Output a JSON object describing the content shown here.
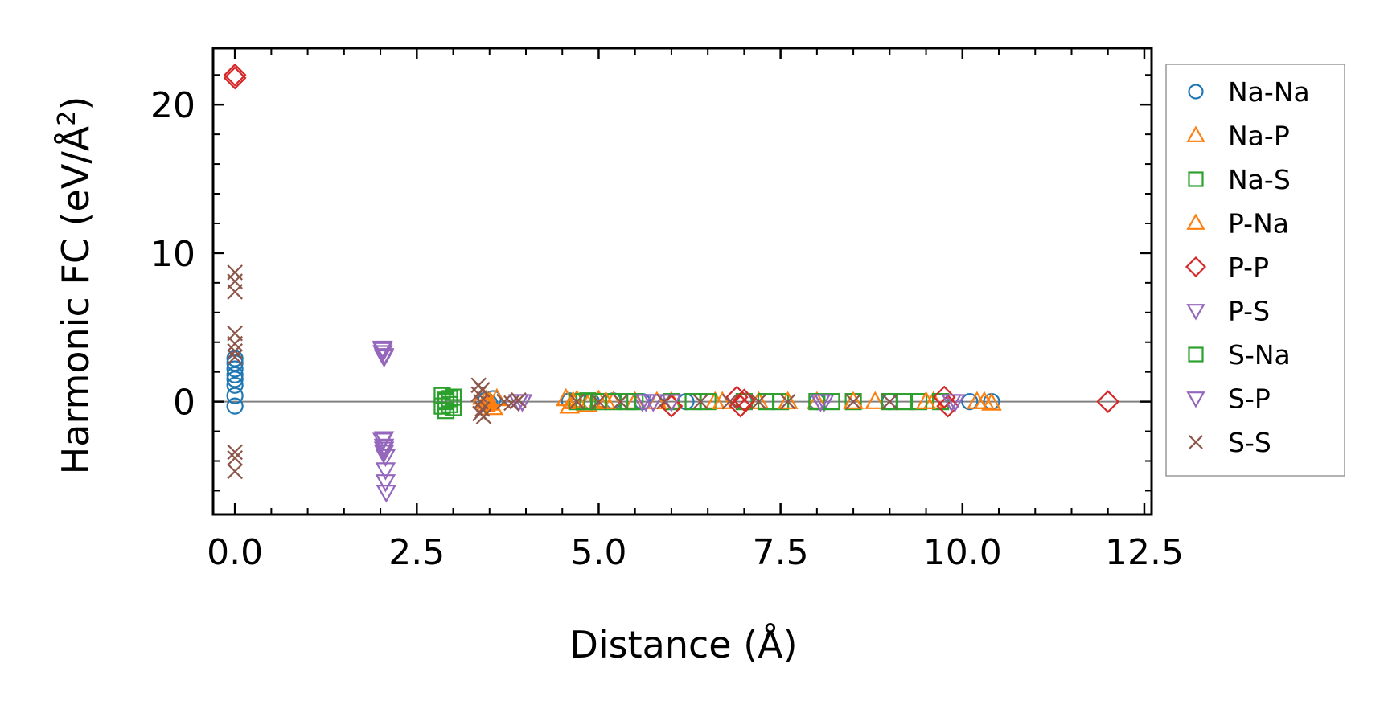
{
  "chart_data": {
    "type": "scatter",
    "title": "",
    "xlabel": "Distance (Å)",
    "ylabel_prefix": "Harmonic FC (eV/Å",
    "ylabel_sup": "2",
    "ylabel_suffix": ")",
    "xlim": [
      -0.3,
      12.6
    ],
    "ylim": [
      -7.6,
      23.8
    ],
    "xticks": [
      0.0,
      2.5,
      5.0,
      7.5,
      10.0,
      12.5
    ],
    "xtick_labels": [
      "0.0",
      "2.5",
      "5.0",
      "7.5",
      "10.0",
      "12.5"
    ],
    "yticks": [
      0,
      10,
      20
    ],
    "ytick_labels": [
      "0",
      "10",
      "20"
    ],
    "zero_line": 0,
    "legend_position": "outside-right",
    "series": [
      {
        "name": "Na-Na",
        "marker": "circle",
        "color": "#1f77b4",
        "points": [
          [
            0.0,
            2.9
          ],
          [
            0.0,
            2.6
          ],
          [
            0.0,
            2.2
          ],
          [
            0.0,
            1.8
          ],
          [
            0.0,
            1.5
          ],
          [
            0.0,
            1.1
          ],
          [
            0.0,
            0.4
          ],
          [
            0.0,
            -0.3
          ],
          [
            3.45,
            0.1
          ],
          [
            3.5,
            -0.1
          ],
          [
            3.55,
            0.2
          ],
          [
            4.6,
            0.05
          ],
          [
            4.9,
            0.0
          ],
          [
            5.2,
            0.05
          ],
          [
            5.6,
            0.0
          ],
          [
            6.2,
            0.0
          ],
          [
            7.0,
            0.02
          ],
          [
            8.0,
            0.0
          ],
          [
            9.0,
            0.0
          ],
          [
            10.1,
            0.0
          ],
          [
            10.4,
            0.0
          ]
        ]
      },
      {
        "name": "Na-P",
        "marker": "triangle-up",
        "color": "#ff7f0e",
        "points": [
          [
            3.4,
            0.3
          ],
          [
            3.45,
            -0.2
          ],
          [
            3.5,
            0.0
          ],
          [
            3.55,
            -0.4
          ],
          [
            3.6,
            0.2
          ],
          [
            4.55,
            0.2
          ],
          [
            4.6,
            -0.3
          ],
          [
            4.7,
            0.1
          ],
          [
            4.85,
            -0.2
          ],
          [
            5.0,
            0.1
          ],
          [
            5.2,
            0.0
          ],
          [
            5.5,
            0.0
          ],
          [
            6.0,
            0.0
          ],
          [
            6.6,
            0.0
          ],
          [
            7.2,
            0.0
          ],
          [
            8.0,
            0.0
          ],
          [
            8.8,
            0.0
          ],
          [
            9.6,
            0.0
          ],
          [
            10.2,
            0.0
          ],
          [
            10.4,
            -0.1
          ]
        ]
      },
      {
        "name": "Na-S",
        "marker": "square",
        "color": "#2ca02c",
        "points": [
          [
            2.85,
            0.4
          ],
          [
            2.85,
            -0.3
          ],
          [
            2.9,
            -0.6
          ],
          [
            2.9,
            0.1
          ],
          [
            2.95,
            0.2
          ],
          [
            3.0,
            -0.4
          ],
          [
            3.0,
            0.3
          ],
          [
            4.7,
            0.0
          ],
          [
            4.85,
            0.05
          ],
          [
            5.0,
            0.0
          ],
          [
            5.2,
            0.0
          ],
          [
            5.5,
            0.0
          ],
          [
            6.0,
            0.0
          ],
          [
            6.5,
            0.0
          ],
          [
            7.0,
            0.0
          ],
          [
            7.5,
            0.0
          ],
          [
            8.0,
            0.0
          ],
          [
            8.5,
            0.0
          ],
          [
            9.0,
            0.0
          ],
          [
            9.4,
            0.0
          ],
          [
            9.7,
            0.0
          ]
        ]
      },
      {
        "name": "P-Na",
        "marker": "triangle-up",
        "color": "#ff7f0e",
        "points": [
          [
            3.45,
            0.1
          ],
          [
            3.5,
            -0.1
          ],
          [
            4.65,
            0.0
          ],
          [
            5.1,
            0.0
          ],
          [
            5.8,
            0.0
          ],
          [
            6.7,
            0.0
          ],
          [
            7.6,
            0.0
          ],
          [
            8.5,
            0.0
          ],
          [
            9.5,
            0.0
          ],
          [
            10.3,
            0.0
          ]
        ]
      },
      {
        "name": "P-P",
        "marker": "diamond",
        "color": "#d62728",
        "points": [
          [
            0.0,
            22.0
          ],
          [
            0.0,
            21.8
          ],
          [
            6.0,
            -0.3
          ],
          [
            6.9,
            0.3
          ],
          [
            6.95,
            -0.3
          ],
          [
            7.0,
            0.1
          ],
          [
            9.75,
            0.3
          ],
          [
            9.8,
            -0.3
          ],
          [
            12.0,
            0.0
          ]
        ]
      },
      {
        "name": "P-S",
        "marker": "triangle-down",
        "color": "#9467bd",
        "points": [
          [
            2.03,
            3.6
          ],
          [
            2.03,
            3.3
          ],
          [
            2.05,
            3.0
          ],
          [
            2.03,
            -2.6
          ],
          [
            2.05,
            -3.0
          ],
          [
            2.05,
            -3.4
          ],
          [
            2.07,
            -3.7
          ],
          [
            3.95,
            0.0
          ],
          [
            5.6,
            0.0
          ],
          [
            5.75,
            0.0
          ],
          [
            6.0,
            0.0
          ],
          [
            8.1,
            0.0
          ],
          [
            9.9,
            0.0
          ]
        ]
      },
      {
        "name": "S-Na",
        "marker": "square",
        "color": "#2ca02c",
        "points": [
          [
            2.9,
            0.0
          ],
          [
            2.95,
            -0.2
          ],
          [
            4.8,
            0.0
          ],
          [
            5.4,
            0.0
          ],
          [
            6.3,
            0.0
          ],
          [
            7.3,
            0.0
          ],
          [
            8.2,
            0.0
          ],
          [
            9.2,
            0.0
          ]
        ]
      },
      {
        "name": "S-P",
        "marker": "triangle-down",
        "color": "#9467bd",
        "points": [
          [
            2.03,
            3.5
          ],
          [
            2.05,
            3.1
          ],
          [
            2.05,
            -2.5
          ],
          [
            2.05,
            -3.2
          ],
          [
            2.07,
            -4.6
          ],
          [
            2.07,
            -5.4
          ],
          [
            2.08,
            -6.1
          ],
          [
            3.9,
            0.0
          ],
          [
            5.65,
            0.0
          ],
          [
            8.05,
            0.0
          ],
          [
            9.85,
            0.0
          ]
        ]
      },
      {
        "name": "S-S",
        "marker": "x",
        "color": "#8c564b",
        "points": [
          [
            0.0,
            8.7
          ],
          [
            0.0,
            8.1
          ],
          [
            0.0,
            7.4
          ],
          [
            0.0,
            4.6
          ],
          [
            0.0,
            3.9
          ],
          [
            0.0,
            3.4
          ],
          [
            0.0,
            3.0
          ],
          [
            0.0,
            -3.4
          ],
          [
            0.0,
            -3.8
          ],
          [
            0.0,
            -4.7
          ],
          [
            3.35,
            1.1
          ],
          [
            3.35,
            0.5
          ],
          [
            3.38,
            0.0
          ],
          [
            3.4,
            -0.5
          ],
          [
            3.42,
            -1.0
          ],
          [
            3.4,
            0.8
          ],
          [
            3.37,
            -0.8
          ],
          [
            3.7,
            0.0
          ],
          [
            3.8,
            -0.1
          ],
          [
            3.9,
            0.1
          ],
          [
            4.7,
            0.0
          ],
          [
            5.0,
            0.0
          ],
          [
            5.3,
            0.0
          ],
          [
            5.9,
            0.0
          ],
          [
            6.4,
            0.0
          ],
          [
            6.8,
            0.0
          ],
          [
            7.2,
            0.0
          ],
          [
            7.6,
            0.0
          ],
          [
            8.5,
            0.0
          ],
          [
            9.0,
            0.0
          ]
        ]
      }
    ]
  }
}
